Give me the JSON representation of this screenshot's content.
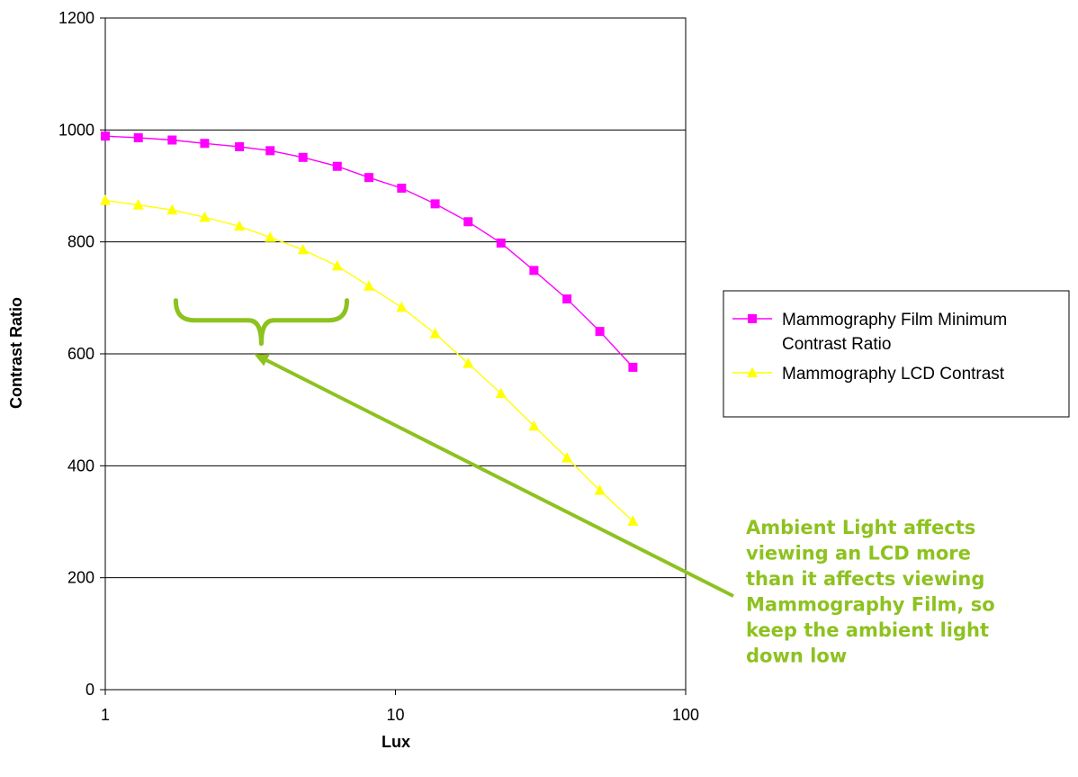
{
  "chart_data": {
    "type": "line",
    "title": "",
    "xlabel": "Lux",
    "ylabel": "Contrast Ratio",
    "x_scale": "log",
    "xlim": [
      1,
      100
    ],
    "ylim": [
      0,
      1200
    ],
    "x_ticks": [
      1,
      10,
      100
    ],
    "x_tick_labels": [
      "1",
      "10",
      "100"
    ],
    "y_ticks": [
      0,
      200,
      400,
      600,
      800,
      1000,
      1200
    ],
    "y_tick_labels": [
      "0",
      "200",
      "400",
      "600",
      "800",
      "1000",
      "1200"
    ],
    "grid": "horizontal",
    "legend_position": "right",
    "series": [
      {
        "name": "Mammography Film Minimum Contrast Ratio",
        "legend_lines": [
          "Mammography Film Minimum",
          "Contrast Ratio"
        ],
        "color": "#ff00ff",
        "marker": "square",
        "x": [
          1,
          1.3,
          1.7,
          2.2,
          2.9,
          3.7,
          4.8,
          6.3,
          8.1,
          10.5,
          13.7,
          17.8,
          23.1,
          30.0,
          39.0,
          50.6,
          65.8
        ],
        "values": [
          989,
          986,
          982,
          976,
          970,
          963,
          951,
          935,
          915,
          896,
          868,
          836,
          798,
          749,
          698,
          640,
          576
        ]
      },
      {
        "name": "Mammography LCD Contrast",
        "legend_lines": [
          "Mammography LCD Contrast"
        ],
        "color": "#ffff00",
        "marker": "triangle",
        "x": [
          1,
          1.3,
          1.7,
          2.2,
          2.9,
          3.7,
          4.8,
          6.3,
          8.1,
          10.5,
          13.7,
          17.8,
          23.1,
          30.0,
          39.0,
          50.6,
          65.8
        ],
        "values": [
          874,
          866,
          857,
          844,
          828,
          808,
          786,
          757,
          721,
          683,
          636,
          583,
          529,
          471,
          414,
          356,
          301
        ]
      }
    ],
    "annotation": {
      "lines": [
        "Ambient Light affects",
        "viewing an LCD more",
        "than it affects viewing",
        "Mammography Film, so",
        "keep the ambient light",
        "down low"
      ],
      "color": "#8dc21f",
      "arrow_to": [
        3.25,
        600
      ],
      "brace_x_range": [
        1.75,
        6.8
      ],
      "brace_y": 660
    }
  }
}
